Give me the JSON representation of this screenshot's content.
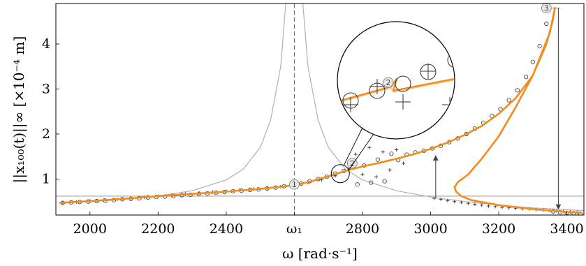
{
  "chart_data": {
    "type": "line",
    "xlabel": "ω [rad·s⁻¹]",
    "ylabel": "||x₁₀₀(t)||∞ [×10⁻⁴ m]",
    "xlim": [
      1900,
      3450
    ],
    "ylim": [
      0.2,
      4.9
    ],
    "x_ticks": [
      {
        "value": 2000,
        "label": "2000"
      },
      {
        "value": 2200,
        "label": "2200"
      },
      {
        "value": 2400,
        "label": "2400"
      },
      {
        "value": 2600,
        "label": "ω₁"
      },
      {
        "value": 2800,
        "label": "2800"
      },
      {
        "value": 3000,
        "label": "3000"
      },
      {
        "value": 3200,
        "label": "3200"
      },
      {
        "value": 3400,
        "label": "3400"
      }
    ],
    "y_ticks": [
      1,
      2,
      3,
      4
    ],
    "grid": false,
    "legend": "none",
    "colors": {
      "frf": "#f28c1c",
      "linear": "#b0b0b0",
      "markers": "#333333",
      "ref": "#888888"
    },
    "reference_lines": {
      "vertical_x": 2600,
      "horizontal_y": 0.62
    },
    "annotations": [
      {
        "label": "1",
        "x": 2600,
        "y": 0.88
      },
      {
        "label": "2",
        "x": 2770,
        "y": 1.35
      },
      {
        "label": "3",
        "x": 3340,
        "y": 4.8
      }
    ],
    "arrows": [
      {
        "x": 3015,
        "y_from": 0.58,
        "y_to": 1.52
      },
      {
        "x": 3375,
        "y_from": 4.8,
        "y_to": 0.33
      }
    ],
    "series": [
      {
        "kind": "curve",
        "x": [
          1910,
          2000,
          2100,
          2200,
          2300,
          2400,
          2500,
          2600,
          2650,
          2700,
          2750,
          2800,
          2850,
          2900,
          2950,
          3000,
          3050,
          3100,
          3150,
          3200,
          3250,
          3300,
          3340,
          3358,
          3365,
          3350,
          3300,
          3250,
          3200,
          3150,
          3110,
          3080,
          3070,
          3075,
          3090,
          3120,
          3200,
          3300,
          3380,
          3445
        ],
        "y": [
          0.47,
          0.51,
          0.56,
          0.62,
          0.67,
          0.72,
          0.78,
          0.86,
          0.95,
          1.06,
          1.18,
          1.28,
          1.36,
          1.45,
          1.55,
          1.67,
          1.81,
          1.98,
          2.18,
          2.45,
          2.8,
          3.3,
          4.0,
          4.5,
          4.8,
          4.25,
          3.3,
          2.6,
          1.95,
          1.45,
          1.1,
          0.93,
          0.82,
          0.72,
          0.62,
          0.53,
          0.42,
          0.33,
          0.28,
          0.25
        ]
      },
      {
        "kind": "linear",
        "x": [
          1910,
          2050,
          2200,
          2300,
          2400,
          2450,
          2500,
          2530,
          2560,
          2575,
          2625,
          2640,
          2670,
          2700,
          2750,
          2800,
          2900,
          3000,
          3100,
          3200,
          3300,
          3450
        ],
        "y": [
          0.46,
          0.52,
          0.62,
          0.74,
          0.98,
          1.22,
          1.7,
          2.3,
          3.5,
          4.9,
          4.9,
          3.5,
          2.3,
          1.7,
          1.22,
          0.98,
          0.74,
          0.6,
          0.5,
          0.42,
          0.36,
          0.3
        ]
      },
      {
        "kind": "circles",
        "x": [
          1920,
          1945,
          1970,
          1995,
          2020,
          2045,
          2070,
          2095,
          2120,
          2145,
          2170,
          2195,
          2220,
          2245,
          2270,
          2295,
          2320,
          2345,
          2370,
          2395,
          2420,
          2445,
          2470,
          2495,
          2520,
          2545,
          2570,
          2595,
          2620,
          2645,
          2670,
          2695,
          2720,
          2745,
          2765,
          2785,
          2805,
          2825,
          2845,
          2865,
          2885,
          2905,
          2930,
          2955,
          2980,
          3005,
          3030,
          3055,
          3080,
          3105,
          3130,
          3155,
          3180,
          3205,
          3230,
          3255,
          3280,
          3300,
          3320,
          3340,
          3360,
          3380,
          3400,
          3420,
          3440
        ],
        "y": [
          0.47,
          0.48,
          0.49,
          0.5,
          0.51,
          0.52,
          0.53,
          0.55,
          0.56,
          0.57,
          0.59,
          0.6,
          0.61,
          0.62,
          0.64,
          0.65,
          0.67,
          0.68,
          0.7,
          0.71,
          0.73,
          0.74,
          0.76,
          0.77,
          0.79,
          0.81,
          0.84,
          0.87,
          0.9,
          0.95,
          1.0,
          1.05,
          1.12,
          1.18,
          1.24,
          0.88,
          1.3,
          0.92,
          1.43,
          0.95,
          1.56,
          1.42,
          1.54,
          1.59,
          1.63,
          1.68,
          1.74,
          1.82,
          1.9,
          2.0,
          2.12,
          2.25,
          2.4,
          2.55,
          2.75,
          2.97,
          3.27,
          3.6,
          3.95,
          4.45,
          0.28,
          0.26,
          0.25,
          0.24,
          0.23
        ]
      },
      {
        "kind": "crosses",
        "x": [
          1920,
          1960,
          2000,
          2040,
          2080,
          2120,
          2160,
          2200,
          2240,
          2280,
          2320,
          2360,
          2400,
          2440,
          2480,
          2520,
          2560,
          2600,
          2640,
          2680,
          2720,
          2760,
          2780,
          2800,
          2820,
          2840,
          2860,
          2880,
          2900,
          2920,
          3010,
          3030,
          3050,
          3070,
          3090,
          3110,
          3130,
          3150,
          3170,
          3190,
          3210,
          3230,
          3250,
          3270,
          3290,
          3310,
          3330,
          3350,
          3370,
          3390,
          3410,
          3430
        ],
        "y": [
          0.47,
          0.49,
          0.51,
          0.53,
          0.55,
          0.57,
          0.59,
          0.62,
          0.64,
          0.67,
          0.69,
          0.71,
          0.73,
          0.76,
          0.78,
          0.8,
          0.83,
          0.87,
          0.92,
          0.98,
          1.07,
          1.2,
          1.55,
          1.1,
          1.7,
          1.05,
          1.6,
          1.2,
          1.65,
          1.35,
          0.57,
          0.55,
          0.52,
          0.5,
          0.48,
          0.46,
          0.44,
          0.42,
          0.4,
          0.39,
          0.37,
          0.36,
          0.35,
          0.34,
          0.33,
          0.32,
          0.31,
          0.3,
          0.29,
          0.28,
          0.27,
          0.26
        ]
      }
    ]
  }
}
